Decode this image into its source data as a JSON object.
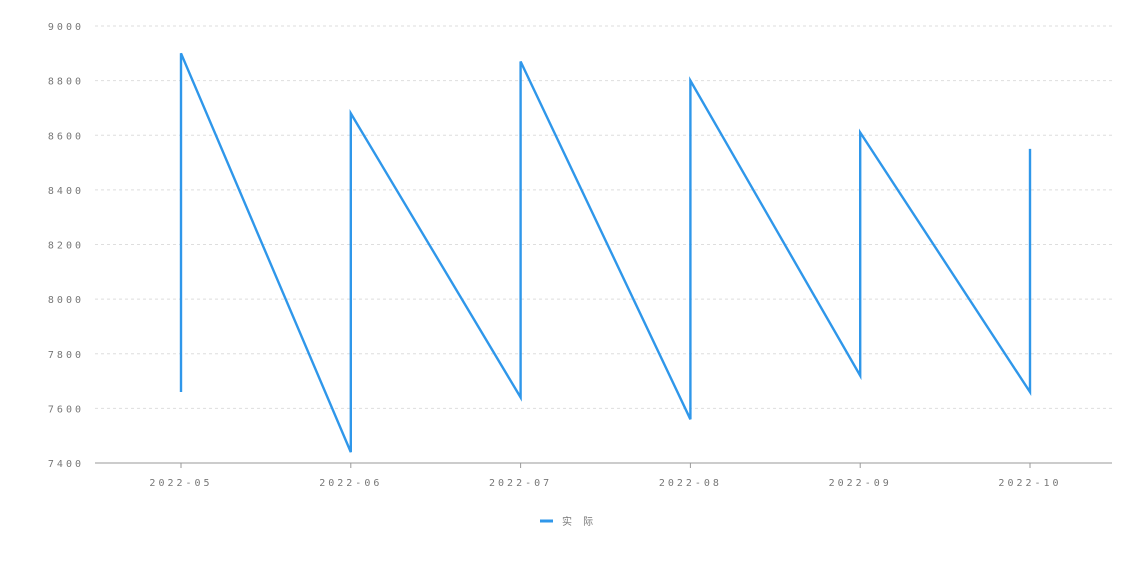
{
  "chart_data": {
    "type": "line",
    "title": "",
    "xlabel": "",
    "ylabel": "",
    "ylim": [
      7400,
      9000
    ],
    "yticks": [
      7400,
      7600,
      7800,
      8000,
      8200,
      8400,
      8600,
      8800,
      9000
    ],
    "categories": [
      "2022-05",
      "2022-06",
      "2022-07",
      "2022-08",
      "2022-09",
      "2022-10"
    ],
    "grid": true,
    "legend_position": "bottom-center",
    "series": [
      {
        "name": "实 际",
        "color": "#2f97ea",
        "points": [
          {
            "x": "2022-05",
            "y": 7660
          },
          {
            "x": "2022-05",
            "y": 8900
          },
          {
            "x": "2022-06",
            "y": 7440
          },
          {
            "x": "2022-06",
            "y": 8680
          },
          {
            "x": "2022-07",
            "y": 7640
          },
          {
            "x": "2022-07",
            "y": 8870
          },
          {
            "x": "2022-08",
            "y": 7560
          },
          {
            "x": "2022-08",
            "y": 8800
          },
          {
            "x": "2022-09",
            "y": 7720
          },
          {
            "x": "2022-09",
            "y": 8610
          },
          {
            "x": "2022-10",
            "y": 7660
          },
          {
            "x": "2022-10",
            "y": 8550
          }
        ]
      }
    ]
  }
}
